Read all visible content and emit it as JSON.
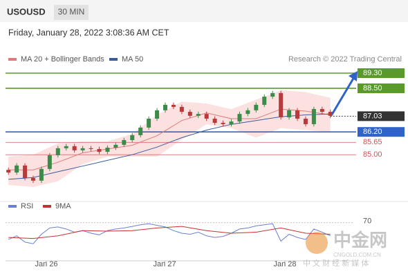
{
  "chart_data": {
    "type": "candlestick",
    "title": "USOUSD",
    "timeframe": "30 MIN",
    "subtitle": "Friday, January 28, 2022 3:08:36 AM CET",
    "source": "Research © 2022 Trading Central",
    "up_color": "#3d8b4a",
    "down_color": "#b83a3a",
    "x": [
      0,
      1,
      2,
      3,
      4,
      5,
      6,
      7,
      8,
      9,
      10,
      11,
      12,
      13,
      14,
      15,
      16,
      17,
      18,
      19,
      20,
      21,
      22,
      23,
      24,
      25,
      26,
      27,
      28,
      29,
      30,
      31,
      32,
      33,
      34,
      35,
      36,
      37,
      38,
      39
    ],
    "open": [
      84.2,
      84.06,
      84.43,
      83.77,
      83.63,
      84.25,
      84.97,
      85.34,
      85.45,
      85.23,
      85.34,
      85.3,
      85.15,
      85.37,
      85.52,
      85.77,
      86.03,
      86.43,
      86.9,
      87.34,
      87.63,
      87.52,
      87.26,
      87.05,
      87.15,
      86.9,
      86.68,
      86.61,
      86.75,
      87.15,
      87.34,
      87.63,
      88.06,
      88.25,
      86.97,
      87.34,
      86.9,
      86.61,
      87.41,
      87.26
    ],
    "high": [
      84.32,
      84.55,
      84.55,
      83.89,
      84.37,
      85.09,
      85.46,
      85.57,
      85.57,
      85.46,
      85.46,
      85.42,
      85.49,
      85.64,
      85.89,
      86.15,
      86.55,
      87.02,
      87.46,
      87.75,
      87.75,
      87.64,
      87.38,
      87.27,
      87.27,
      87.02,
      86.8,
      86.87,
      87.27,
      87.46,
      87.75,
      88.18,
      88.37,
      88.37,
      87.46,
      87.46,
      87.02,
      87.53,
      87.53,
      87.38
    ],
    "low": [
      83.94,
      83.94,
      83.65,
      83.51,
      83.51,
      84.13,
      84.85,
      85.22,
      85.11,
      85.11,
      85.18,
      85.03,
      85.03,
      85.25,
      85.4,
      85.65,
      85.91,
      86.31,
      86.78,
      87.22,
      87.4,
      87.14,
      86.93,
      86.93,
      86.78,
      86.56,
      86.49,
      86.49,
      86.63,
      87.03,
      87.22,
      87.51,
      87.94,
      86.85,
      86.85,
      86.78,
      86.49,
      86.49,
      87.14,
      86.93
    ],
    "close": [
      84.06,
      84.43,
      83.77,
      83.63,
      84.25,
      84.97,
      85.34,
      85.45,
      85.23,
      85.34,
      85.3,
      85.15,
      85.37,
      85.52,
      85.77,
      86.03,
      86.43,
      86.9,
      87.34,
      87.63,
      87.52,
      87.26,
      87.05,
      87.15,
      86.9,
      86.68,
      86.61,
      86.75,
      87.15,
      87.34,
      87.63,
      88.06,
      88.25,
      86.97,
      87.34,
      86.9,
      86.61,
      87.41,
      87.26,
      87.05
    ],
    "xlim": [
      -0.35,
      41.7
    ],
    "ylim": [
      82.97,
      89.7
    ],
    "xticks": [
      {
        "value": 4.59,
        "label": "Jan 26"
      },
      {
        "value": 18.92,
        "label": "Jan 27"
      },
      {
        "value": 33.49,
        "label": "Jan 28"
      }
    ],
    "series": [
      {
        "name": "MA 20 + Bollinger Bands",
        "color": "#e07a7a",
        "band_color": "#fbdada",
        "x": [
          0,
          3,
          6,
          9,
          12,
          15,
          18,
          21,
          24,
          27,
          30,
          33,
          36,
          39
        ],
        "values": [
          84.2,
          84.2,
          84.6,
          85.1,
          85.3,
          85.5,
          86.0,
          86.8,
          87.2,
          86.9,
          86.9,
          87.4,
          87.3,
          87.1
        ],
        "upper": [
          84.9,
          85.0,
          85.6,
          85.7,
          85.7,
          86.1,
          87.1,
          87.8,
          87.7,
          87.4,
          87.9,
          88.4,
          88.3,
          88.0
        ],
        "lower": [
          83.4,
          83.3,
          83.6,
          84.5,
          84.9,
          84.9,
          84.9,
          85.8,
          86.6,
          86.4,
          85.9,
          86.4,
          86.3,
          86.2
        ]
      },
      {
        "name": "MA 50",
        "color": "#3a5b9a",
        "x": [
          0,
          3,
          6,
          9,
          12,
          15,
          18,
          21,
          24,
          27,
          30,
          33,
          36,
          39
        ],
        "values": [
          83.7,
          83.8,
          84.1,
          84.4,
          84.7,
          85.0,
          85.4,
          85.9,
          86.3,
          86.6,
          86.8,
          87.0,
          87.1,
          87.15
        ]
      }
    ],
    "levels": [
      {
        "value": 89.3,
        "label": "89.30",
        "color": "#5a9a2a",
        "boxed": true
      },
      {
        "value": 88.5,
        "label": "88.50",
        "color": "#5a9a2a",
        "boxed": true
      },
      {
        "value": 87.03,
        "label": "87.03",
        "color": "#333333",
        "boxed": true,
        "dotted": true
      },
      {
        "value": 86.2,
        "label": "86.20",
        "color": "#2f63c8",
        "boxed": true
      },
      {
        "value": 85.65,
        "label": "85.65",
        "color": "#d05050",
        "boxed": false
      },
      {
        "value": 85.0,
        "label": "85.00",
        "color": "#d05050",
        "boxed": false
      }
    ],
    "rsi": {
      "ylim": [
        0,
        100
      ],
      "yticks": [
        70
      ],
      "series": [
        {
          "name": "RSI",
          "color": "#6a7fd0",
          "x": [
            0,
            1,
            2,
            3,
            4,
            5,
            6,
            7,
            8,
            9,
            10,
            11,
            12,
            13,
            14,
            15,
            16,
            17,
            18,
            19,
            20,
            21,
            22,
            23,
            24,
            25,
            26,
            27,
            28,
            29,
            30,
            31,
            32,
            33,
            34,
            35,
            36,
            37,
            38,
            39
          ],
          "values": [
            38,
            45,
            33,
            30,
            48,
            60,
            62,
            58,
            52,
            55,
            50,
            47,
            55,
            58,
            60,
            63,
            66,
            68,
            65,
            62,
            55,
            50,
            48,
            52,
            45,
            42,
            44,
            50,
            58,
            60,
            64,
            66,
            68,
            35,
            48,
            42,
            38,
            58,
            52,
            45
          ]
        },
        {
          "name": "9MA",
          "color": "#c83030",
          "x": [
            0,
            3,
            6,
            9,
            12,
            15,
            18,
            21,
            24,
            27,
            30,
            33,
            36,
            39
          ],
          "values": [
            42,
            40,
            45,
            55,
            54,
            55,
            60,
            63,
            55,
            50,
            52,
            60,
            50,
            48
          ]
        }
      ]
    }
  },
  "watermark": {
    "title": "中金网",
    "url": "CNGOLD.COM.CN",
    "tagline": "中 文 财 经 新 媒 体"
  }
}
